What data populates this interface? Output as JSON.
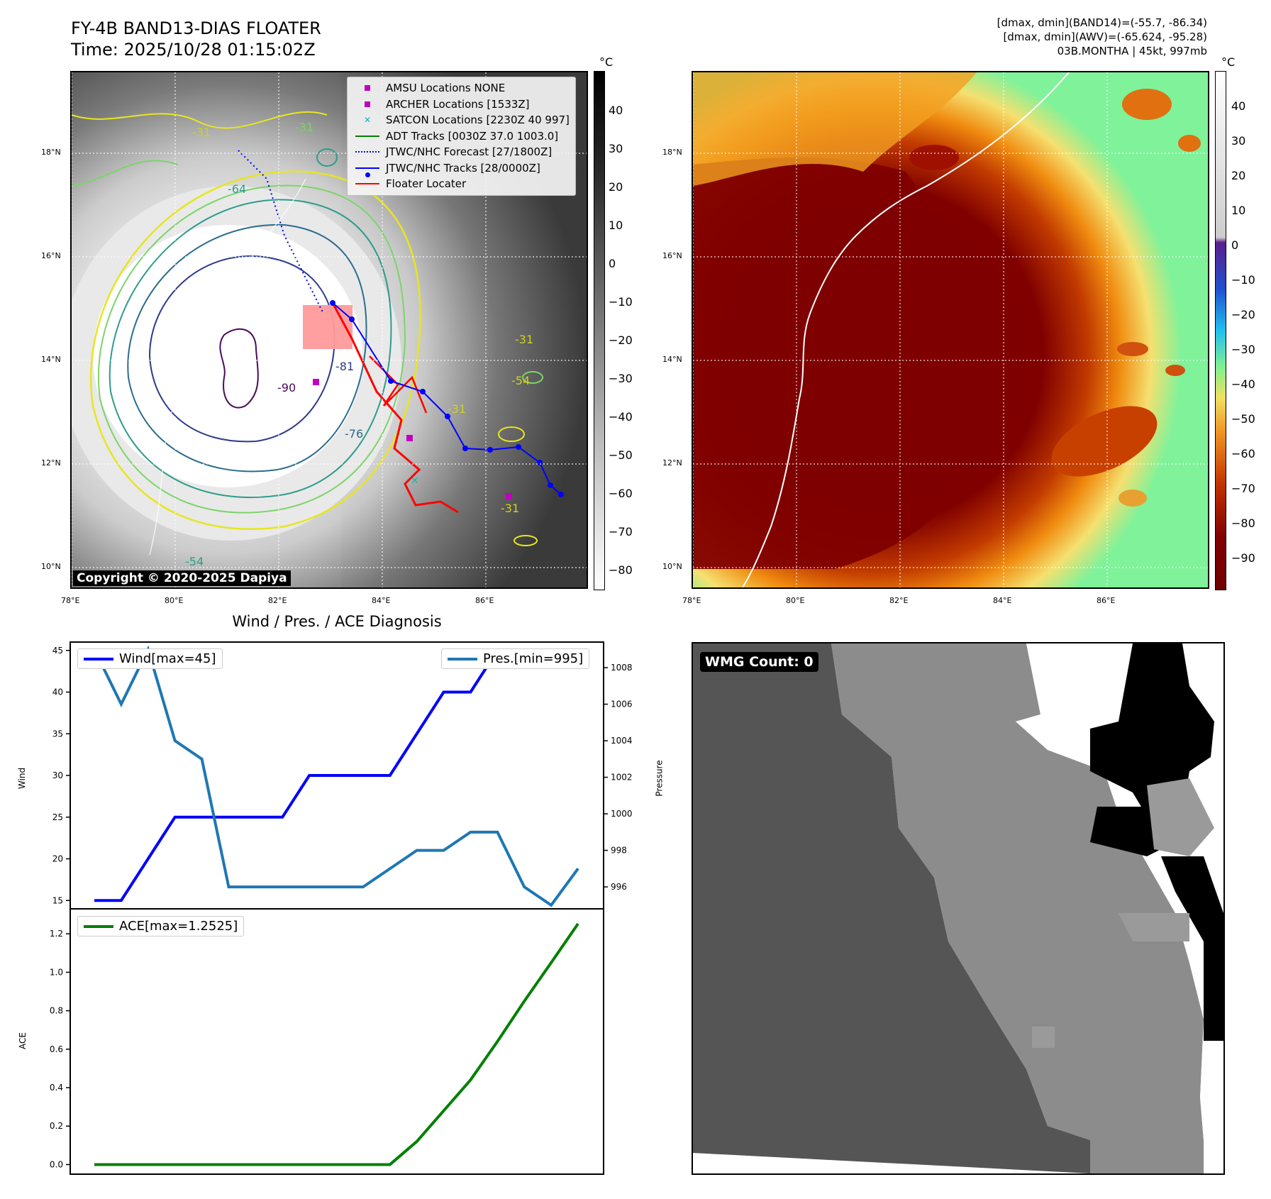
{
  "header": {
    "title_line1": "FY-4B BAND13-DIAS FLOATER",
    "title_line2": "Time: 2025/10/28 01:15:02Z",
    "right_line1": "[dmax, dmin](BAND14)=(-55.7, -86.34)",
    "right_line2": "[dmax, dmin](AWV)=(-65.624, -95.28)",
    "right_line3": "03B.MONTHA | 45kt, 997mb"
  },
  "map_axes": {
    "lat_ticks": [
      "18°N",
      "16°N",
      "14°N",
      "12°N",
      "10°N"
    ],
    "lon_ticks": [
      "78°E",
      "80°E",
      "82°E",
      "84°E",
      "86°E"
    ]
  },
  "ir_panel": {
    "legend": [
      {
        "label": "AMSU Locations NONE",
        "symbol": "square",
        "color": "#c000c0"
      },
      {
        "label": "ARCHER Locations [1533Z]",
        "symbol": "square",
        "color": "#c000c0"
      },
      {
        "label": "SATCON Locations [2230Z 40 997]",
        "symbol": "x",
        "color": "#20b2aa"
      },
      {
        "label": "ADT Tracks [0030Z 37.0 1003.0]",
        "symbol": "line",
        "color": "#008000"
      },
      {
        "label": "JTWC/NHC Forecast [27/1800Z]",
        "symbol": "dotted",
        "color": "#0000ff"
      },
      {
        "label": "JTWC/NHC Tracks [28/0000Z]",
        "symbol": "dotline",
        "color": "#0000ff"
      },
      {
        "label": "Floater Locater",
        "symbol": "line",
        "color": "#ff0000"
      }
    ],
    "copyright": "Copyright © 2020-2025 Dapiya",
    "contour_labels": [
      "-31",
      "-31",
      "-31",
      "-31",
      "-54",
      "-64",
      "-76",
      "-81",
      "-90",
      "-31"
    ],
    "colorbar_unit": "°C",
    "colorbar_ticks": [
      "40",
      "30",
      "20",
      "10",
      "0",
      "−10",
      "−20",
      "−30",
      "−40",
      "−50",
      "−60",
      "−70",
      "−80"
    ]
  },
  "wv_panel": {
    "colorbar_unit": "°C",
    "colorbar_ticks": [
      "40",
      "30",
      "20",
      "10",
      "0",
      "−10",
      "−20",
      "−30",
      "−40",
      "−50",
      "−60",
      "−70",
      "−80",
      "−90"
    ]
  },
  "diag_title": "Wind / Pres. / ACE Diagnosis",
  "wmg_badge": "WMG Count: 0",
  "colors": {
    "wind": "#0000ff",
    "pressure": "#1f77b4",
    "ace": "#008000"
  },
  "chart_data": [
    {
      "type": "line",
      "title": "Wind / Pres. / ACE Diagnosis",
      "x": [
        0,
        1,
        2,
        3,
        4,
        5,
        6,
        7,
        8,
        9,
        10,
        11,
        12,
        13,
        14,
        15,
        16,
        17,
        18
      ],
      "series": [
        {
          "name": "Wind[max=45]",
          "axis": "left",
          "values": [
            15,
            15,
            20,
            25,
            25,
            25,
            25,
            25,
            30,
            30,
            30,
            30,
            35,
            40,
            40,
            45,
            45,
            45,
            45
          ]
        },
        {
          "name": "Pres.[min=995]",
          "axis": "right",
          "values": [
            1009,
            1006,
            1009,
            1004,
            1003,
            996,
            996,
            996,
            996,
            996,
            996,
            997,
            998,
            998,
            999,
            999,
            996,
            995,
            997
          ]
        }
      ],
      "ylabel": "Wind",
      "ylim": [
        14,
        46
      ],
      "yticks": [
        15,
        20,
        25,
        30,
        35,
        40,
        45
      ],
      "y2label": "Pressure",
      "y2lim": [
        994.8,
        1009.4
      ],
      "y2ticks": [
        996,
        998,
        1000,
        1002,
        1004,
        1006,
        1008
      ]
    },
    {
      "type": "line",
      "x": [
        0,
        1,
        2,
        3,
        4,
        5,
        6,
        7,
        8,
        9,
        10,
        11,
        12,
        13,
        14,
        15,
        16,
        17,
        18
      ],
      "series": [
        {
          "name": "ACE[max=1.2525]",
          "values": [
            0,
            0,
            0,
            0,
            0,
            0,
            0,
            0,
            0,
            0,
            0,
            0,
            0.12,
            0.28,
            0.44,
            0.64,
            0.85,
            1.05,
            1.2525
          ]
        }
      ],
      "ylabel": "ACE",
      "ylim": [
        -0.05,
        1.33
      ],
      "yticks": [
        "0.0",
        "0.2",
        "0.4",
        "0.6",
        "0.8",
        "1.0",
        "1.2"
      ]
    }
  ]
}
